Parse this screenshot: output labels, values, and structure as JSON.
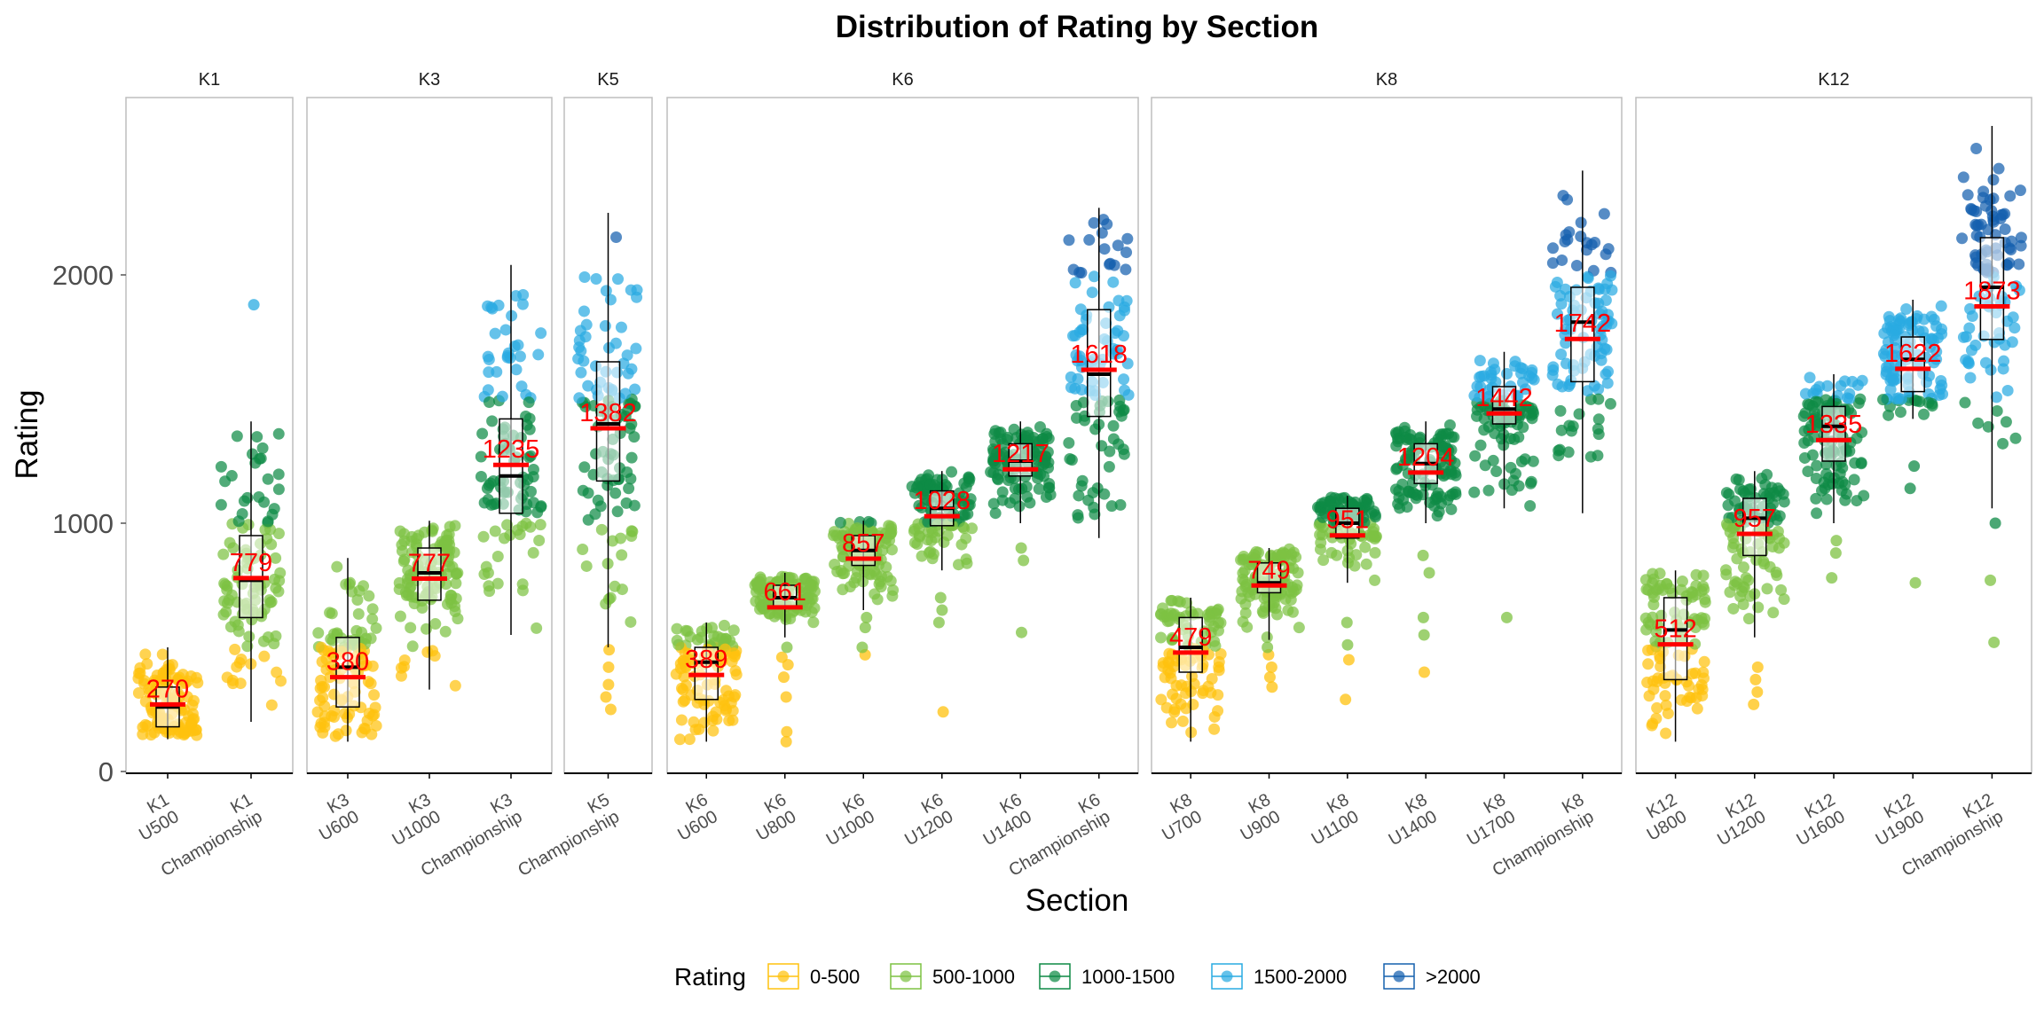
{
  "chart_data": {
    "type": "box",
    "title": "Distribution of Rating by Section",
    "xlabel": "Section",
    "ylabel": "Rating",
    "ylim": [
      0,
      2700
    ],
    "yticks": [
      0,
      1000,
      2000
    ],
    "grid": false,
    "legend": {
      "title": "Rating",
      "position": "bottom",
      "entries": [
        {
          "label": "0-500",
          "color": "#FFC20E"
        },
        {
          "label": "500-1000",
          "color": "#7DC242"
        },
        {
          "label": "1000-1500",
          "color": "#0E8A45"
        },
        {
          "label": "1500-2000",
          "color": "#29ABE2"
        },
        {
          "label": ">2000",
          "color": "#1560AE"
        }
      ]
    },
    "panels": [
      {
        "name": "K1",
        "sections": [
          {
            "label1": "K1",
            "label2": "U500",
            "min": 130,
            "q1": 180,
            "median": 260,
            "q3": 340,
            "max": 500,
            "mean": 270,
            "mean_label": "270",
            "outliers": []
          },
          {
            "label1": "K1",
            "label2": "Championship",
            "min": 200,
            "q1": 620,
            "median": 770,
            "q3": 950,
            "max": 1410,
            "mean": 779,
            "mean_label": "779",
            "outliers": [
              1880
            ]
          }
        ]
      },
      {
        "name": "K3",
        "sections": [
          {
            "label1": "K3",
            "label2": "U600",
            "min": 120,
            "q1": 260,
            "median": 420,
            "q3": 540,
            "max": 860,
            "mean": 380,
            "mean_label": "380",
            "outliers": []
          },
          {
            "label1": "K3",
            "label2": "U1000",
            "min": 330,
            "q1": 690,
            "median": 800,
            "q3": 900,
            "max": 1010,
            "mean": 777,
            "mean_label": "777",
            "outliers": []
          },
          {
            "label1": "K3",
            "label2": "Championship",
            "min": 550,
            "q1": 1040,
            "median": 1190,
            "q3": 1420,
            "max": 2040,
            "mean": 1235,
            "mean_label": "1235",
            "outliers": []
          }
        ]
      },
      {
        "name": "K5",
        "sections": [
          {
            "label1": "K5",
            "label2": "Championship",
            "min": 500,
            "q1": 1170,
            "median": 1400,
            "q3": 1650,
            "max": 2250,
            "mean": 1382,
            "mean_label": "1382",
            "outliers": [
              250,
              300,
              350,
              420,
              490
            ]
          }
        ]
      },
      {
        "name": "K6",
        "sections": [
          {
            "label1": "K6",
            "label2": "U600",
            "min": 120,
            "q1": 290,
            "median": 440,
            "q3": 500,
            "max": 600,
            "mean": 389,
            "mean_label": "389",
            "outliers": []
          },
          {
            "label1": "K6",
            "label2": "U800",
            "min": 540,
            "q1": 660,
            "median": 700,
            "q3": 750,
            "max": 800,
            "mean": 661,
            "mean_label": "661",
            "outliers": [
              120,
              160,
              300,
              380,
              430,
              460,
              500
            ]
          },
          {
            "label1": "K6",
            "label2": "U1000",
            "min": 650,
            "q1": 830,
            "median": 890,
            "q3": 950,
            "max": 1010,
            "mean": 857,
            "mean_label": "857",
            "outliers": [
              470,
              500,
              580,
              620
            ]
          },
          {
            "label1": "K6",
            "label2": "U1200",
            "min": 810,
            "q1": 990,
            "median": 1060,
            "q3": 1130,
            "max": 1210,
            "mean": 1028,
            "mean_label": "1028",
            "outliers": [
              240,
              600,
              650,
              700
            ]
          },
          {
            "label1": "K6",
            "label2": "U1400",
            "min": 1000,
            "q1": 1190,
            "median": 1250,
            "q3": 1320,
            "max": 1410,
            "mean": 1217,
            "mean_label": "1217",
            "outliers": [
              560,
              850,
              900
            ]
          },
          {
            "label1": "K6",
            "label2": "Championship",
            "min": 940,
            "q1": 1430,
            "median": 1600,
            "q3": 1860,
            "max": 2270,
            "mean": 1618,
            "mean_label": "1618",
            "outliers": []
          }
        ]
      },
      {
        "name": "K8",
        "sections": [
          {
            "label1": "K8",
            "label2": "U700",
            "min": 120,
            "q1": 400,
            "median": 500,
            "q3": 620,
            "max": 700,
            "mean": 479,
            "mean_label": "479",
            "outliers": []
          },
          {
            "label1": "K8",
            "label2": "U900",
            "min": 530,
            "q1": 720,
            "median": 760,
            "q3": 840,
            "max": 900,
            "mean": 749,
            "mean_label": "749",
            "outliers": [
              340,
              380,
              420,
              470,
              500
            ]
          },
          {
            "label1": "K8",
            "label2": "U1100",
            "min": 760,
            "q1": 940,
            "median": 1000,
            "q3": 1060,
            "max": 1110,
            "mean": 951,
            "mean_label": "951",
            "outliers": [
              290,
              450,
              510,
              600
            ]
          },
          {
            "label1": "K8",
            "label2": "U1400",
            "min": 1000,
            "q1": 1160,
            "median": 1240,
            "q3": 1320,
            "max": 1410,
            "mean": 1204,
            "mean_label": "1204",
            "outliers": [
              400,
              550,
              620,
              800,
              870
            ]
          },
          {
            "label1": "K8",
            "label2": "U1700",
            "min": 1060,
            "q1": 1400,
            "median": 1460,
            "q3": 1550,
            "max": 1690,
            "mean": 1442,
            "mean_label": "1442",
            "outliers": [
              620
            ]
          },
          {
            "label1": "K8",
            "label2": "Championship",
            "min": 1040,
            "q1": 1570,
            "median": 1810,
            "q3": 1950,
            "max": 2420,
            "mean": 1742,
            "mean_label": "1742",
            "outliers": []
          }
        ]
      },
      {
        "name": "K12",
        "sections": [
          {
            "label1": "K12",
            "label2": "U800",
            "min": 120,
            "q1": 370,
            "median": 570,
            "q3": 700,
            "max": 810,
            "mean": 512,
            "mean_label": "512",
            "outliers": []
          },
          {
            "label1": "K12",
            "label2": "U1200",
            "min": 540,
            "q1": 870,
            "median": 1020,
            "q3": 1100,
            "max": 1210,
            "mean": 957,
            "mean_label": "957",
            "outliers": [
              270,
              320,
              370,
              420
            ]
          },
          {
            "label1": "K12",
            "label2": "U1600",
            "min": 1000,
            "q1": 1250,
            "median": 1390,
            "q3": 1470,
            "max": 1600,
            "mean": 1335,
            "mean_label": "1335",
            "outliers": [
              780,
              880,
              930
            ]
          },
          {
            "label1": "K12",
            "label2": "U1900",
            "min": 1420,
            "q1": 1530,
            "median": 1660,
            "q3": 1750,
            "max": 1900,
            "mean": 1622,
            "mean_label": "1622",
            "outliers": [
              760,
              1140,
              1230
            ]
          },
          {
            "label1": "K12",
            "label2": "Championship",
            "min": 1060,
            "q1": 1740,
            "median": 1950,
            "q3": 2150,
            "max": 2600,
            "mean": 1873,
            "mean_label": "1873",
            "outliers": [
              520,
              770,
              1000
            ]
          }
        ]
      }
    ]
  }
}
